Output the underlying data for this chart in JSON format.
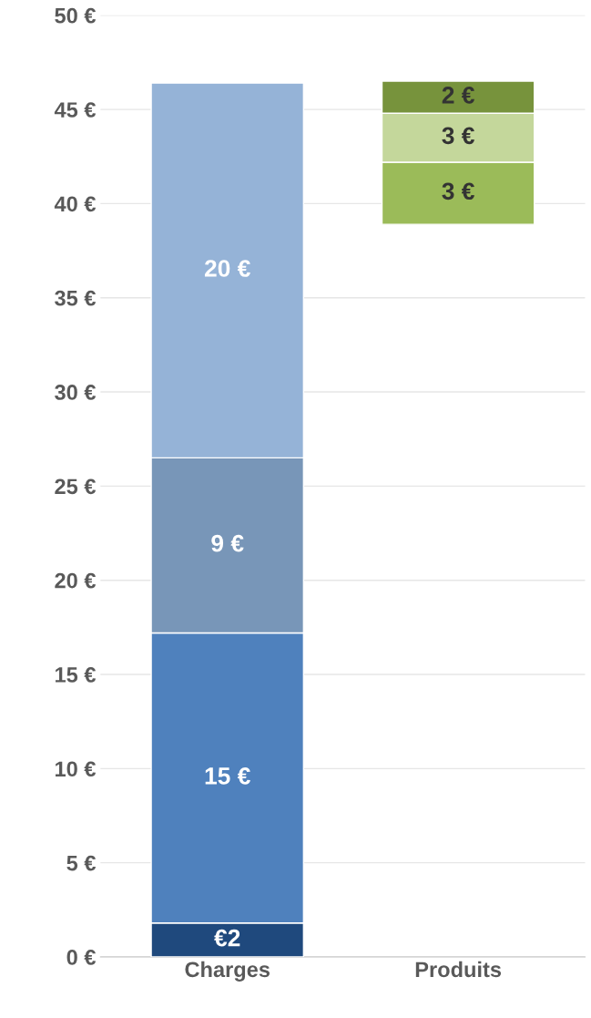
{
  "chart_data": {
    "type": "bar",
    "categories": [
      "Charges",
      "Produits"
    ],
    "series": [
      {
        "color": "#1f497d",
        "base": [
          0,
          null
        ],
        "values": [
          1.8,
          null
        ],
        "value_labels": [
          "€2",
          null
        ]
      },
      {
        "color": "#4f81bd",
        "base": [
          1.8,
          null
        ],
        "values": [
          15.4,
          null
        ],
        "value_labels": [
          "15 €",
          null
        ]
      },
      {
        "color": "#7896b8",
        "base": [
          17.2,
          null
        ],
        "values": [
          9.3,
          null
        ],
        "value_labels": [
          "9 €",
          null
        ]
      },
      {
        "color": "#95b3d7",
        "base": [
          26.5,
          null
        ],
        "values": [
          19.9,
          null
        ],
        "value_labels": [
          "20 €",
          null
        ]
      },
      {
        "color": "#9bbb59",
        "base": [
          null,
          38.9
        ],
        "values": [
          null,
          3.3
        ],
        "value_labels": [
          null,
          "3 €"
        ]
      },
      {
        "color": "#c4d79b",
        "base": [
          null,
          42.2
        ],
        "values": [
          null,
          2.6
        ],
        "value_labels": [
          null,
          "3 €"
        ]
      },
      {
        "color": "#77933c",
        "base": [
          null,
          44.8
        ],
        "values": [
          null,
          1.7
        ],
        "value_labels": [
          null,
          "2 €"
        ]
      }
    ],
    "ylim": [
      0,
      50
    ],
    "yticks": [
      {
        "value": 0,
        "label": "0 €"
      },
      {
        "value": 5,
        "label": "5 €"
      },
      {
        "value": 10,
        "label": "10 €"
      },
      {
        "value": 15,
        "label": "15 €"
      },
      {
        "value": 20,
        "label": "20 €"
      },
      {
        "value": 25,
        "label": "25 €"
      },
      {
        "value": 30,
        "label": "30 €"
      },
      {
        "value": 35,
        "label": "35 €"
      },
      {
        "value": 40,
        "label": "40 €"
      },
      {
        "value": 45,
        "label": "45 €"
      },
      {
        "value": 50,
        "label": "50 €"
      }
    ],
    "grid": "y",
    "legend": false
  }
}
